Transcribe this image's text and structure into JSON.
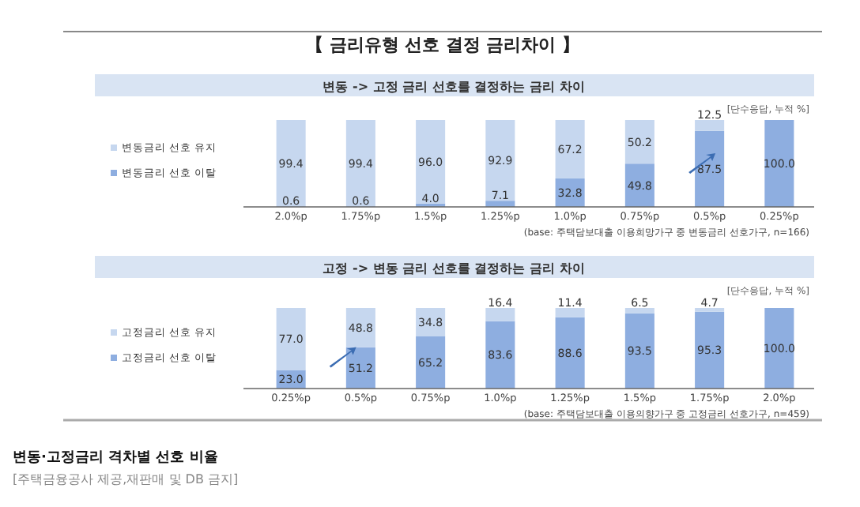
{
  "chart_data": [
    {
      "type": "bar",
      "stacked": true,
      "title": "변동 -> 고정 금리 선호를 결정하는 금리 차이",
      "annotations": [
        "【 금리유형 선호 결정 금리차이 】",
        "[단수응답, 누적 %]",
        "(base: 주택담보대출 이용희망가구 중 변동금리 선호가구, n=166)"
      ],
      "categories": [
        "2.0%p",
        "1.75%p",
        "1.5%p",
        "1.25%p",
        "1.0%p",
        "0.75%p",
        "0.5%p",
        "0.25%p"
      ],
      "series": [
        {
          "name": "변동금리 선호 이탈",
          "color": "#8eaee0",
          "values": [
            0.6,
            0.6,
            4.0,
            7.1,
            32.8,
            49.8,
            87.5,
            100.0
          ],
          "value_labels": [
            "0.6",
            "0.6",
            "4.0",
            "7.1",
            "32.8",
            "49.8",
            "87.5",
            "100.0"
          ]
        },
        {
          "name": "변동금리 선호 유지",
          "color": "#c6d7ef",
          "values": [
            99.4,
            99.4,
            96.0,
            92.9,
            67.2,
            50.2,
            12.5,
            null
          ],
          "value_labels": [
            "99.4",
            "99.4",
            "96.0",
            "92.9",
            "67.2",
            "50.2",
            "12.5",
            null
          ]
        }
      ],
      "legend": "left",
      "grid": false
    },
    {
      "type": "bar",
      "stacked": true,
      "title": "고정 -> 변동 금리 선호를 결정하는 금리 차이",
      "annotations": [
        "[단수응답, 누적 %]",
        "(base: 주택담보대출 이용의향가구 중 고정금리 선호가구, n=459)",
        "변동·고정금리 격차별 선호 비율",
        "[주택금융공사 제공,재판매 및 DB 금지]"
      ],
      "categories": [
        "0.25%p",
        "0.5%p",
        "0.75%p",
        "1.0%p",
        "1.25%p",
        "1.5%p",
        "1.75%p",
        "2.0%p"
      ],
      "series": [
        {
          "name": "고정금리 선호 이탈",
          "color": "#8eaee0",
          "values": [
            23.0,
            51.2,
            65.2,
            83.6,
            88.6,
            93.5,
            95.3,
            100.0
          ],
          "value_labels": [
            "23.0",
            "51.2",
            "65.2",
            "83.6",
            "88.6",
            "93.5",
            "95.3",
            "100.0"
          ]
        },
        {
          "name": "고정금리 선호 유지",
          "color": "#c6d7ef",
          "values": [
            77.0,
            48.8,
            34.8,
            16.4,
            11.4,
            6.5,
            4.7,
            null
          ],
          "value_labels": [
            "77.0",
            "48.8",
            "34.8",
            "16.4",
            "11.4",
            "6.5",
            "4.7",
            null
          ]
        }
      ],
      "legend": "left",
      "grid": false
    }
  ]
}
